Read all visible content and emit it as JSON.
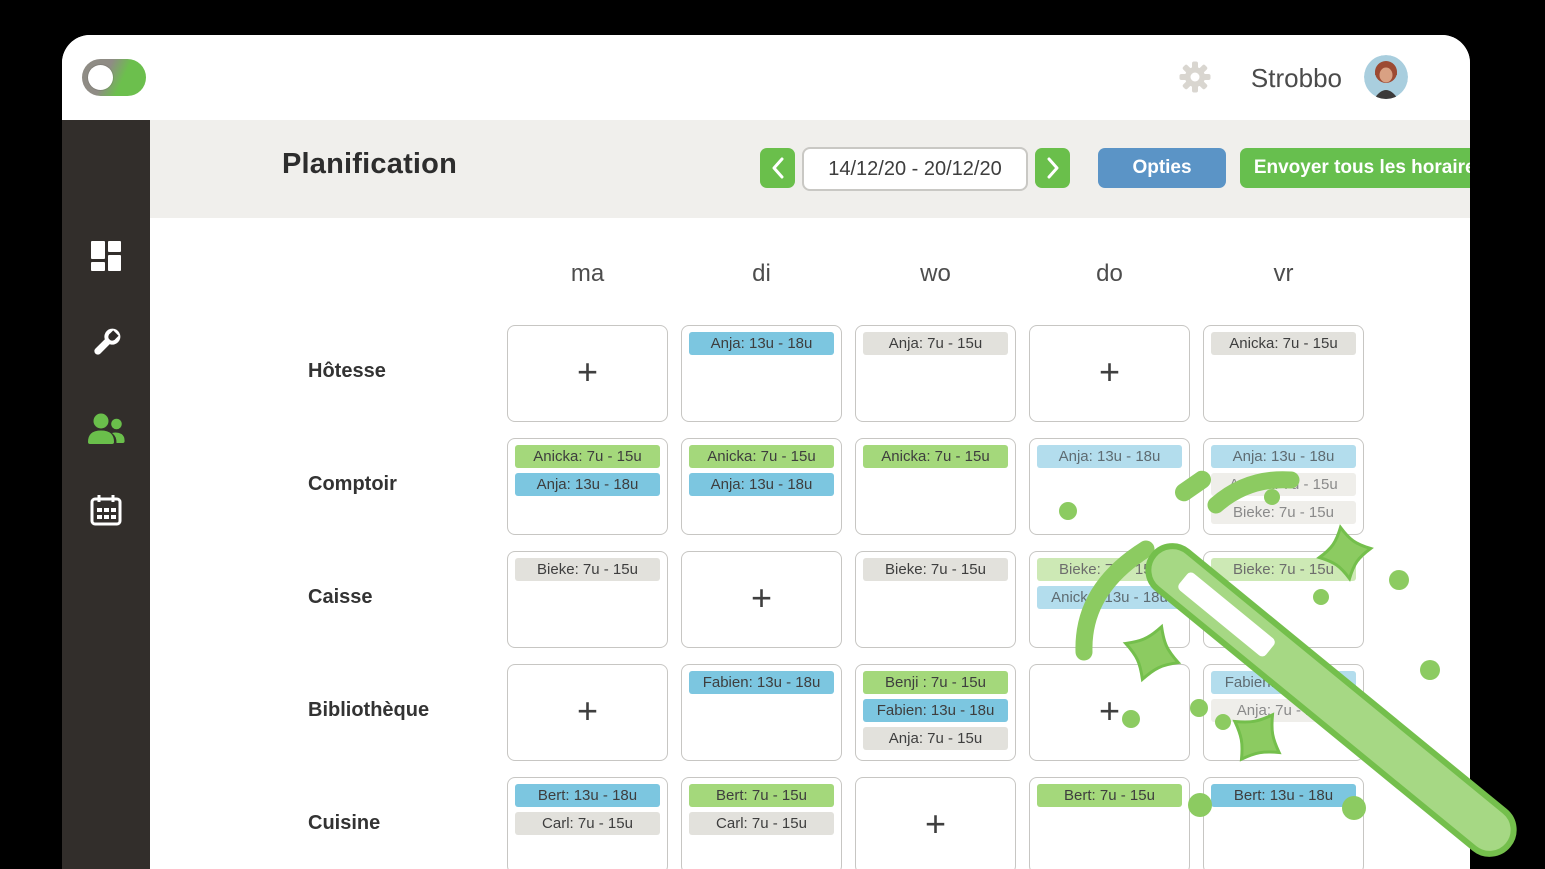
{
  "topbar": {
    "brand": "Strobbo"
  },
  "sidebar": {
    "items": [
      {
        "id": "dashboard",
        "icon": "dashboard-icon",
        "active": false
      },
      {
        "id": "settings-tools",
        "icon": "wrench-icon",
        "active": false
      },
      {
        "id": "employees",
        "icon": "users-icon",
        "active": true
      },
      {
        "id": "planning",
        "icon": "calendar-icon",
        "active": false
      }
    ]
  },
  "header": {
    "title": "Planification",
    "date_range": "14/12/20 - 20/12/20",
    "prev_icon": "chevron-left",
    "next_icon": "chevron-right",
    "options_label": "Opties",
    "send_label": "Envoyer tous les horaires"
  },
  "schedule": {
    "plus_symbol": "+",
    "days": [
      "ma",
      "di",
      "wo",
      "do",
      "vr"
    ],
    "rows": [
      {
        "label": "Hôtesse",
        "cells": [
          {
            "type": "empty"
          },
          {
            "type": "shifts",
            "shifts": [
              {
                "text": "Anja: 13u - 18u",
                "color": "blue",
                "faded": false
              }
            ]
          },
          {
            "type": "shifts",
            "shifts": [
              {
                "text": "Anja: 7u - 15u",
                "color": "gray",
                "faded": false
              }
            ]
          },
          {
            "type": "empty"
          },
          {
            "type": "shifts",
            "shifts": [
              {
                "text": "Anicka: 7u - 15u",
                "color": "gray",
                "faded": false
              }
            ]
          }
        ]
      },
      {
        "label": "Comptoir",
        "cells": [
          {
            "type": "shifts",
            "shifts": [
              {
                "text": "Anicka: 7u - 15u",
                "color": "green",
                "faded": false
              },
              {
                "text": "Anja: 13u - 18u",
                "color": "blue",
                "faded": false
              }
            ]
          },
          {
            "type": "shifts",
            "shifts": [
              {
                "text": "Anicka: 7u - 15u",
                "color": "green",
                "faded": false
              },
              {
                "text": "Anja: 13u - 18u",
                "color": "blue",
                "faded": false
              }
            ]
          },
          {
            "type": "shifts",
            "shifts": [
              {
                "text": "Anicka: 7u - 15u",
                "color": "green",
                "faded": false
              }
            ]
          },
          {
            "type": "shifts",
            "shifts": [
              {
                "text": "Anja: 13u - 18u",
                "color": "blue",
                "faded": true
              }
            ]
          },
          {
            "type": "shifts",
            "shifts": [
              {
                "text": "Anja: 13u - 18u",
                "color": "blue",
                "faded": true
              },
              {
                "text": "Anicka: 7u - 15u",
                "color": "gray",
                "faded": true
              },
              {
                "text": "Bieke: 7u - 15u",
                "color": "gray",
                "faded": true
              }
            ]
          }
        ]
      },
      {
        "label": "Caisse",
        "cells": [
          {
            "type": "shifts",
            "shifts": [
              {
                "text": "Bieke: 7u - 15u",
                "color": "gray",
                "faded": false
              }
            ]
          },
          {
            "type": "empty"
          },
          {
            "type": "shifts",
            "shifts": [
              {
                "text": "Bieke: 7u - 15u",
                "color": "gray",
                "faded": false
              }
            ]
          },
          {
            "type": "shifts",
            "shifts": [
              {
                "text": "Bieke: 7u - 15u",
                "color": "green",
                "faded": true
              },
              {
                "text": "Anicka: 13u - 18u",
                "color": "blue",
                "faded": true
              }
            ]
          },
          {
            "type": "shifts",
            "shifts": [
              {
                "text": "Bieke: 7u - 15u",
                "color": "green",
                "faded": true
              }
            ]
          }
        ]
      },
      {
        "label": "Bibliothèque",
        "cells": [
          {
            "type": "empty"
          },
          {
            "type": "shifts",
            "shifts": [
              {
                "text": "Fabien: 13u - 18u",
                "color": "blue",
                "faded": false
              }
            ]
          },
          {
            "type": "shifts",
            "shifts": [
              {
                "text": "Benji : 7u - 15u",
                "color": "green",
                "faded": false
              },
              {
                "text": "Fabien: 13u - 18u",
                "color": "blue",
                "faded": false
              },
              {
                "text": "Anja: 7u - 15u",
                "color": "gray",
                "faded": false
              }
            ]
          },
          {
            "type": "empty"
          },
          {
            "type": "shifts",
            "shifts": [
              {
                "text": "Fabien: 13u - 18u",
                "color": "blue",
                "faded": true
              },
              {
                "text": "Anja: 7u - 15u",
                "color": "gray",
                "faded": true
              }
            ]
          }
        ]
      },
      {
        "label": "Cuisine",
        "cells": [
          {
            "type": "shifts",
            "shifts": [
              {
                "text": "Bert: 13u - 18u",
                "color": "blue",
                "faded": false
              },
              {
                "text": "Carl: 7u - 15u",
                "color": "gray",
                "faded": false
              }
            ]
          },
          {
            "type": "shifts",
            "shifts": [
              {
                "text": "Bert: 7u - 15u",
                "color": "green",
                "faded": false
              },
              {
                "text": "Carl: 7u - 15u",
                "color": "gray",
                "faded": false
              }
            ]
          },
          {
            "type": "empty"
          },
          {
            "type": "shifts",
            "shifts": [
              {
                "text": "Bert: 7u - 15u",
                "color": "green",
                "faded": false
              }
            ]
          },
          {
            "type": "shifts",
            "shifts": [
              {
                "text": "Bert: 13u - 18u",
                "color": "blue",
                "faded": false
              }
            ]
          }
        ]
      }
    ]
  },
  "colors": {
    "accent_green": "#67bf4e",
    "accent_blue": "#5b94c6",
    "chip_green": "#a4d87b",
    "chip_blue": "#7cc6e0",
    "chip_gray": "#e2e1dc",
    "sidebar_bg": "#322e2b",
    "band_bg": "#f0efec",
    "wand_fill": "#a6d884",
    "wand_stroke": "#74bf4c"
  }
}
